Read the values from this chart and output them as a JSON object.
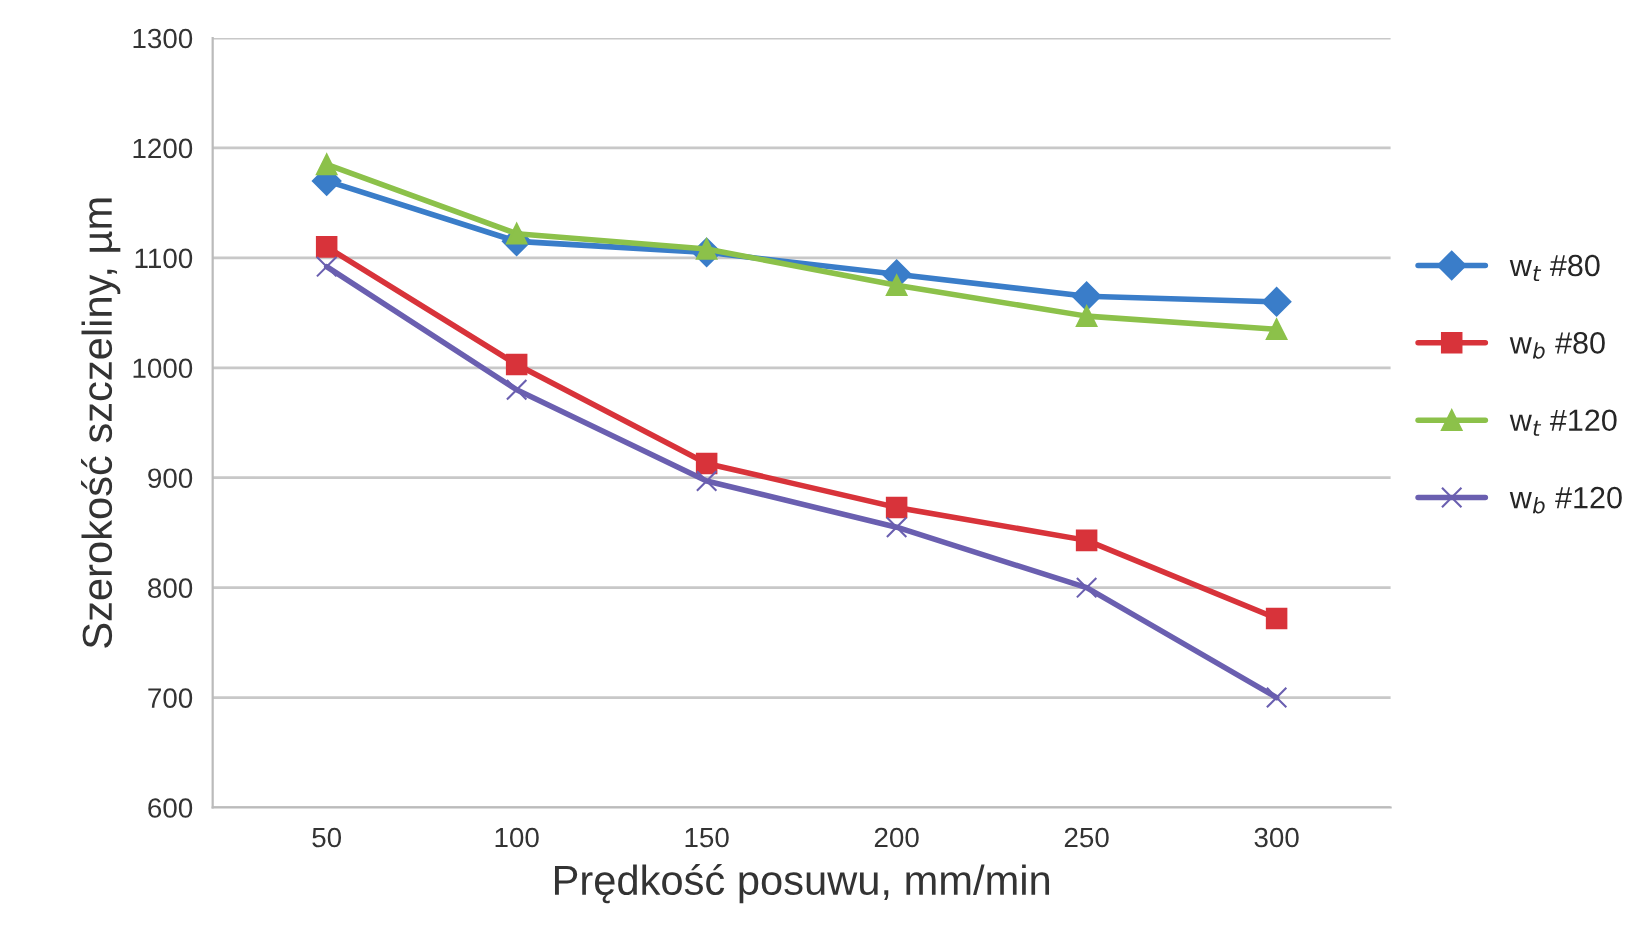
{
  "chart_data": {
    "type": "line",
    "xlabel": "Prędkość posuwu, mm/min",
    "ylabel": "Szerokość szczeliny, µm",
    "categories": [
      "50",
      "100",
      "150",
      "200",
      "250",
      "300"
    ],
    "series": [
      {
        "name": "w$_{t}$ #80",
        "color": "#3a7dc9",
        "marker": "diamond",
        "values": [
          1170,
          1115,
          1105,
          1085,
          1065,
          1060
        ]
      },
      {
        "name": "w$_{b}$ #80",
        "color": "#d8333a",
        "marker": "square",
        "values": [
          1110,
          1003,
          913,
          873,
          843,
          772
        ]
      },
      {
        "name": "w$_{t}$ #120",
        "color": "#8cc14a",
        "marker": "triangle",
        "values": [
          1185,
          1122,
          1108,
          1075,
          1047,
          1035
        ]
      },
      {
        "name": "w$_{b}$ #120",
        "color": "#6a5fb0",
        "marker": "cross",
        "values": [
          1092,
          980,
          897,
          855,
          800,
          700
        ]
      }
    ],
    "ylim": [
      600,
      1300
    ],
    "yticks": [
      600,
      700,
      800,
      900,
      1000,
      1100,
      1200,
      1300
    ],
    "grid": "y",
    "legend": "right",
    "line_style": "solid"
  }
}
